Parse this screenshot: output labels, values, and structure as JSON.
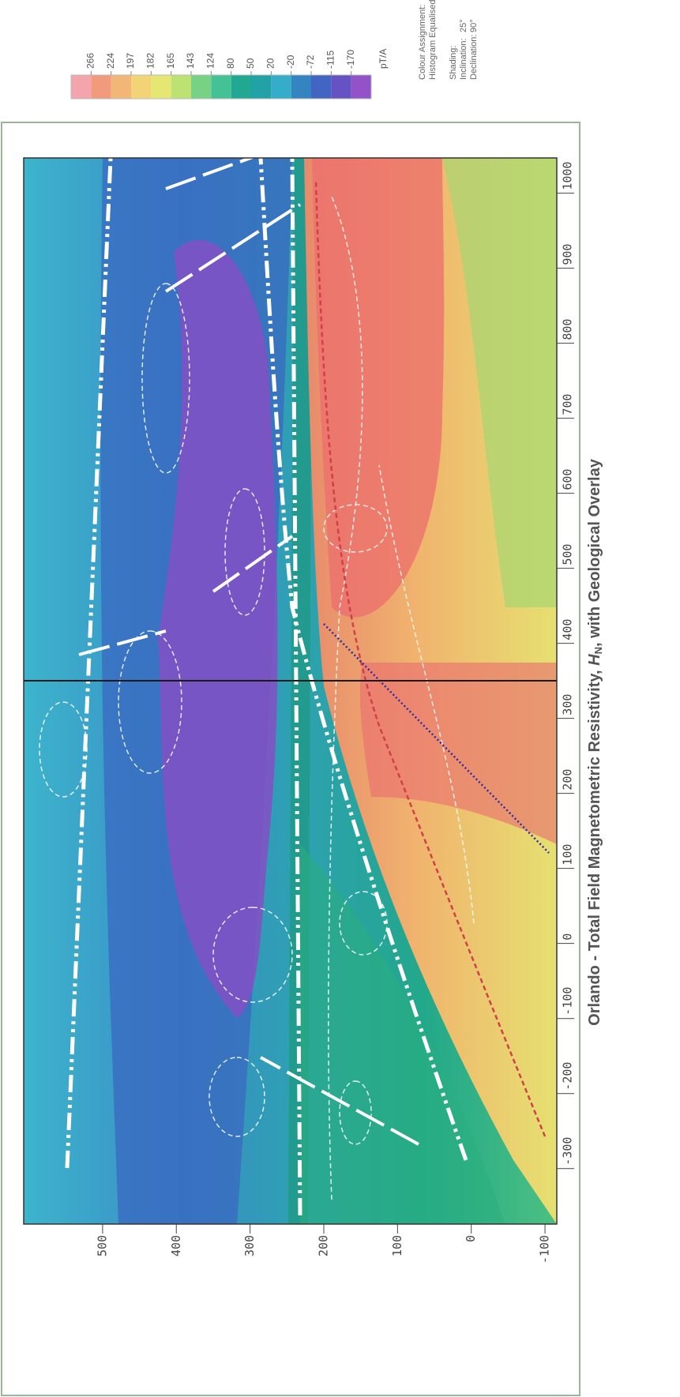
{
  "map": {
    "title": {
      "prefix": "Orlando - Total Field Magnetometric Resistivity, ",
      "symbol": "H",
      "subscript": "N",
      "suffix": ", with Geological Overlay"
    },
    "x_axis": {
      "lim": [
        -374,
        1047
      ],
      "ticks": [
        -300,
        -200,
        -100,
        0,
        100,
        200,
        300,
        400,
        500,
        600,
        700,
        800,
        900,
        1000
      ]
    },
    "y_axis": {
      "lim": [
        -116,
        607
      ],
      "ticks": [
        -100,
        0,
        100,
        200,
        300,
        400,
        500
      ]
    },
    "legend": {
      "colors": [
        "#f4a4ac",
        "#f29a7c",
        "#f2b676",
        "#f2d476",
        "#e6e672",
        "#bce274",
        "#78d286",
        "#44c296",
        "#22a892",
        "#22a2a6",
        "#34acca",
        "#3484c2",
        "#4264c2",
        "#6652c2",
        "#9452c8"
      ],
      "labels": [
        266,
        224,
        197,
        182,
        165,
        143,
        124,
        80,
        50,
        20,
        -20,
        -72,
        -115,
        -170
      ],
      "unit": "pT/A"
    },
    "notes": {
      "colour_assignment": "Colour Assignment:",
      "method": "Histogram Equalised",
      "shading": "Shading:",
      "inclination_label": "Inclination:",
      "inclination": "25°",
      "declination_label": "Declination:",
      "declination": "90°"
    }
  }
}
